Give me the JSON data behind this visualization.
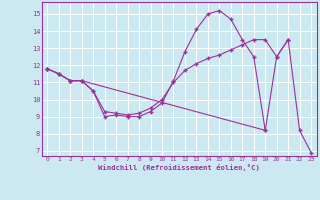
{
  "xlabel": "Windchill (Refroidissement éolien,°C)",
  "bg_color": "#cce8f0",
  "line_color": "#993399",
  "grid_color": "#ffffff",
  "xlim": [
    -0.5,
    23.5
  ],
  "ylim": [
    6.7,
    15.7
  ],
  "yticks": [
    7,
    8,
    9,
    10,
    11,
    12,
    13,
    14,
    15
  ],
  "xticks": [
    0,
    1,
    2,
    3,
    4,
    5,
    6,
    7,
    8,
    9,
    10,
    11,
    12,
    13,
    14,
    15,
    16,
    17,
    18,
    19,
    20,
    21,
    22,
    23
  ],
  "line1_x": [
    0,
    1,
    2,
    3,
    4,
    5,
    6,
    7,
    8,
    9,
    10,
    11,
    12,
    13,
    14,
    15,
    16,
    17,
    18,
    19
  ],
  "line1_y": [
    11.8,
    11.5,
    11.1,
    11.1,
    10.5,
    9.0,
    9.1,
    9.0,
    9.0,
    9.3,
    9.8,
    11.1,
    12.8,
    14.1,
    15.0,
    15.2,
    14.7,
    13.5,
    12.5,
    8.2
  ],
  "line2_x": [
    0,
    1,
    2,
    3,
    4,
    5,
    6,
    7,
    8,
    9,
    10,
    11,
    12,
    13,
    14,
    15,
    16,
    17,
    18,
    19,
    20,
    21
  ],
  "line2_y": [
    11.8,
    11.5,
    11.1,
    11.1,
    10.5,
    9.3,
    9.2,
    9.1,
    9.2,
    9.5,
    10.0,
    11.0,
    11.7,
    12.1,
    12.4,
    12.6,
    12.9,
    13.2,
    13.5,
    13.5,
    12.5,
    13.5
  ],
  "line3_x": [
    0,
    1,
    2,
    3,
    19,
    20,
    21,
    22,
    23
  ],
  "line3_y": [
    11.8,
    11.5,
    11.1,
    11.1,
    8.2,
    12.5,
    13.5,
    8.2,
    6.9
  ]
}
